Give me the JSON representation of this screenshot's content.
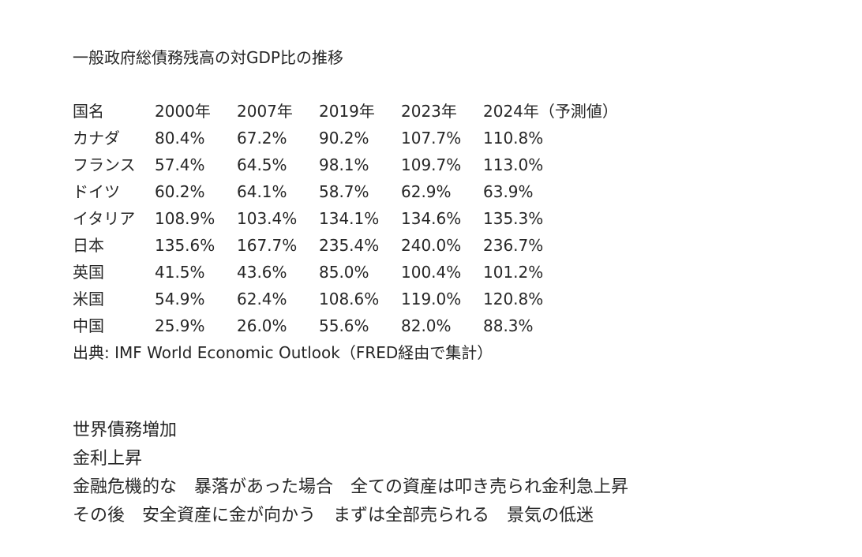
{
  "document": {
    "title": "一般政府総債務残高の対GDP比の推移",
    "table": {
      "headers": [
        "国名",
        "2000年",
        "2007年",
        "2019年",
        "2023年",
        "2024年（予測値）"
      ],
      "rows": [
        [
          "カナダ",
          "80.4%",
          "67.2%",
          "90.2%",
          "107.7%",
          "110.8%"
        ],
        [
          "フランス",
          "57.4%",
          "64.5%",
          "98.1%",
          "109.7%",
          "113.0%"
        ],
        [
          "ドイツ",
          "60.2%",
          "64.1%",
          "58.7%",
          "62.9%",
          "63.9%"
        ],
        [
          "イタリア",
          "108.9%",
          "103.4%",
          "134.1%",
          "134.6%",
          "135.3%"
        ],
        [
          "日本",
          "135.6%",
          "167.7%",
          "235.4%",
          "240.0%",
          "236.7%"
        ],
        [
          "英国",
          "41.5%",
          "43.6%",
          "85.0%",
          "100.4%",
          "101.2%"
        ],
        [
          "米国",
          "54.9%",
          "62.4%",
          "108.6%",
          "119.0%",
          "120.8%"
        ],
        [
          "中国",
          "25.9%",
          "26.0%",
          "55.6%",
          "82.0%",
          "88.3%"
        ]
      ]
    },
    "source": "出典: IMF World Economic Outlook（FRED経由で集計）",
    "notes": [
      "世界債務増加",
      "金利上昇",
      "金融危機的な　暴落があった場合　全ての資産は叩き売られ金利急上昇",
      "その後　安全資産に金が向かう　まずは全部売られる　景気の低迷"
    ]
  }
}
